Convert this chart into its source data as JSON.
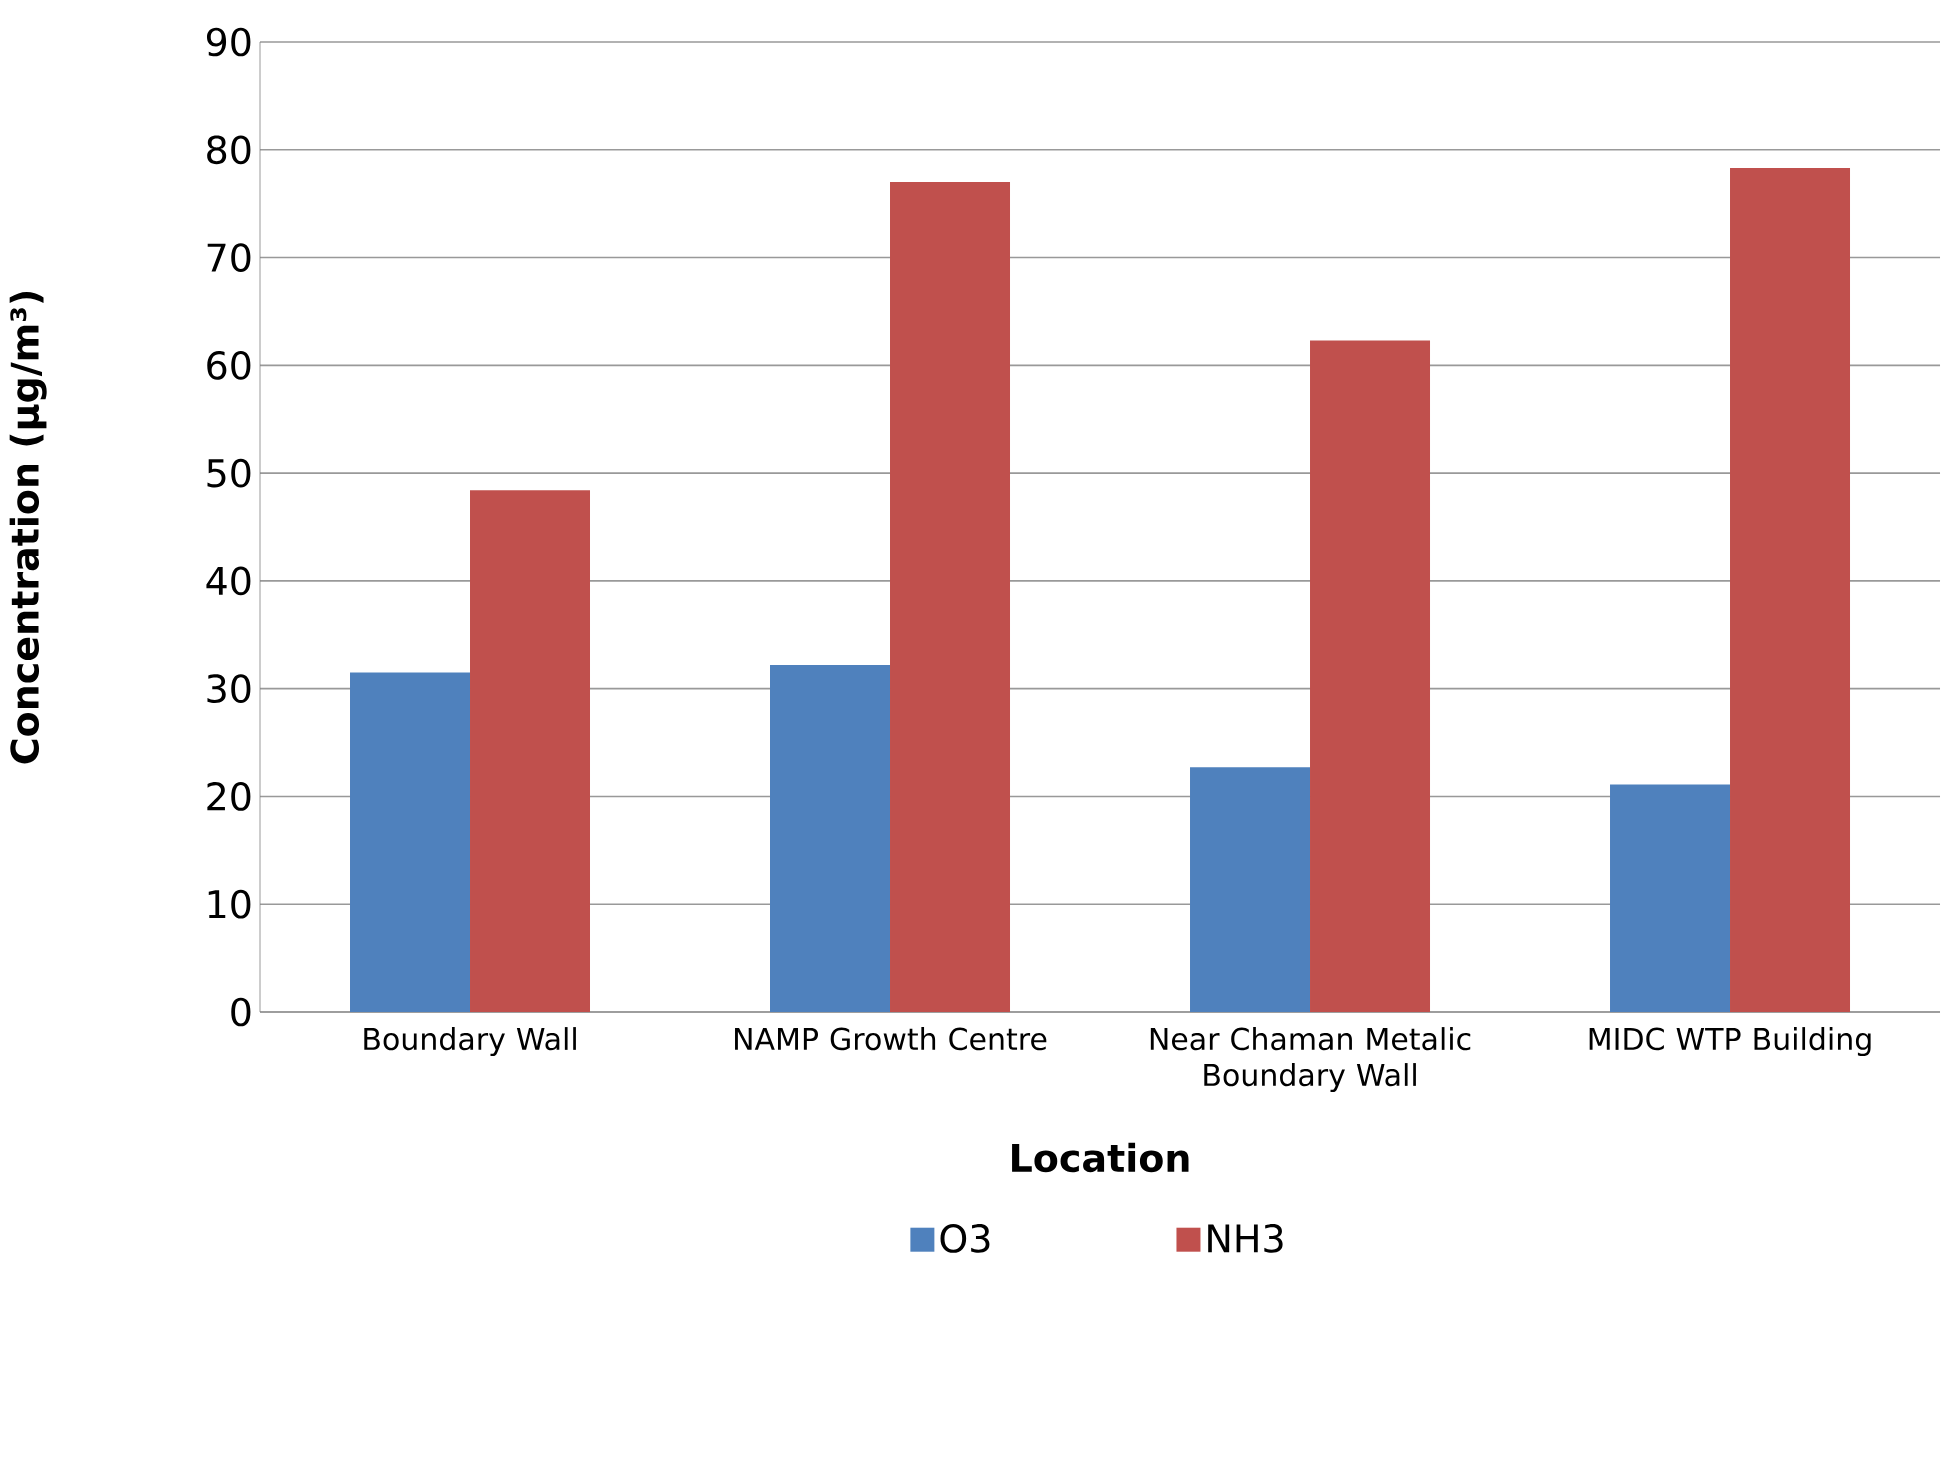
{
  "chart_data": {
    "type": "bar",
    "xlabel": "Location",
    "ylabel": "Concentration (µg/m³)",
    "categories": [
      "Boundary Wall",
      "NAMP Growth Centre",
      "Near Chaman Metalic Boundary Wall",
      "MIDC WTP Building"
    ],
    "series": [
      {
        "name": "O3",
        "color": "#4f81bd",
        "values": [
          31.5,
          32.2,
          22.7,
          21.1
        ]
      },
      {
        "name": "NH3",
        "color": "#c0504d",
        "values": [
          48.4,
          77.0,
          62.3,
          78.3
        ]
      }
    ],
    "ylim": [
      0,
      90
    ],
    "yticks": [
      0,
      10,
      20,
      30,
      40,
      50,
      60,
      70,
      80,
      90
    ],
    "grid": "y",
    "legend": "bottom"
  }
}
